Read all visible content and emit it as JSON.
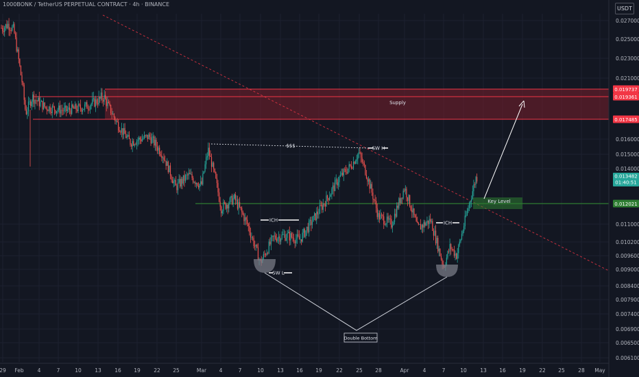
{
  "header": {
    "title": "1000BONK / TetherUS PERPETUAL CONTRACT · 4h · BINANCE",
    "currency": "USDT"
  },
  "colors": {
    "background": "#131722",
    "up": "#26a69a",
    "down": "#ef5350",
    "supply_fill": "#7a1f2b",
    "supply_border": "#f23645",
    "key_level": "#2e7d32",
    "price_tag": "#26a69a",
    "trendline": "#f23645",
    "text": "#b2b5be"
  },
  "axis": {
    "y_ticks": [
      "0.027000",
      "0.025000",
      "0.023000",
      "0.021000",
      "0.016000",
      "0.015000",
      "0.014000",
      "0.011000",
      "0.010200",
      "0.009600",
      "0.009000",
      "0.008400",
      "0.007900",
      "0.007400",
      "0.006900",
      "0.006500",
      "0.006100"
    ],
    "x_ticks": [
      "29",
      "Feb",
      "4",
      "7",
      "10",
      "13",
      "16",
      "19",
      "22",
      "25",
      "Mar",
      "4",
      "7",
      "10",
      "13",
      "16",
      "19",
      "22",
      "25",
      "28",
      "Apr",
      "4",
      "7",
      "10",
      "13",
      "16",
      "19",
      "22",
      "25",
      "28",
      "May"
    ]
  },
  "price_labels": {
    "supply_top": "0.019737",
    "supply_mid": "0.019361",
    "supply_bottom": "0.017485",
    "current_price": "0.013482",
    "countdown": "01:40:51",
    "key_level": "0.012021"
  },
  "annotations": {
    "supply": "Supply",
    "liquidity": "$$$",
    "swing_high": "SW H",
    "swing_low": "SW L",
    "ich_left": "ICH",
    "ich_right": "ICH",
    "key_level": "Key Level",
    "double_bottom": "Double Bottom"
  },
  "chart_data": {
    "type": "candlestick",
    "symbol": "1000BONK / TetherUS PERPETUAL CONTRACT",
    "interval": "4h",
    "exchange": "BINANCE",
    "ylim": [
      0.0058,
      0.0275
    ],
    "approx_close_path": [
      {
        "date": "Jan 29",
        "price": 0.0262
      },
      {
        "date": "Jan 30",
        "price": 0.0266
      },
      {
        "date": "Jan 31",
        "price": 0.026
      },
      {
        "date": "Feb 1",
        "price": 0.0225
      },
      {
        "date": "Feb 2",
        "price": 0.018
      },
      {
        "date": "Feb 3",
        "price": 0.0193
      },
      {
        "date": "Feb 5",
        "price": 0.0185
      },
      {
        "date": "Feb 8",
        "price": 0.0182
      },
      {
        "date": "Feb 11",
        "price": 0.0185
      },
      {
        "date": "Feb 13",
        "price": 0.019
      },
      {
        "date": "Feb 14",
        "price": 0.0193
      },
      {
        "date": "Feb 16",
        "price": 0.0172
      },
      {
        "date": "Feb 18",
        "price": 0.0158
      },
      {
        "date": "Feb 21",
        "price": 0.0162
      },
      {
        "date": "Feb 23",
        "price": 0.015
      },
      {
        "date": "Feb 25",
        "price": 0.0129
      },
      {
        "date": "Feb 27",
        "price": 0.0136
      },
      {
        "date": "Mar 1",
        "price": 0.013
      },
      {
        "date": "Mar 2",
        "price": 0.0153
      },
      {
        "date": "Mar 4",
        "price": 0.0118
      },
      {
        "date": "Mar 6",
        "price": 0.0123
      },
      {
        "date": "Mar 8",
        "price": 0.011
      },
      {
        "date": "Mar 10",
        "price": 0.0093
      },
      {
        "date": "Mar 12",
        "price": 0.0104
      },
      {
        "date": "Mar 14",
        "price": 0.0105
      },
      {
        "date": "Mar 16",
        "price": 0.0103
      },
      {
        "date": "Mar 18",
        "price": 0.0112
      },
      {
        "date": "Mar 20",
        "price": 0.0122
      },
      {
        "date": "Mar 22",
        "price": 0.0134
      },
      {
        "date": "Mar 24",
        "price": 0.0143
      },
      {
        "date": "Mar 25",
        "price": 0.0151
      },
      {
        "date": "Mar 26",
        "price": 0.0139
      },
      {
        "date": "Mar 28",
        "price": 0.0114
      },
      {
        "date": "Mar 30",
        "price": 0.011
      },
      {
        "date": "Apr 1",
        "price": 0.0129
      },
      {
        "date": "Apr 3",
        "price": 0.0108
      },
      {
        "date": "Apr 5",
        "price": 0.0112
      },
      {
        "date": "Apr 7",
        "price": 0.0091
      },
      {
        "date": "Apr 8",
        "price": 0.01
      },
      {
        "date": "Apr 9",
        "price": 0.0096
      },
      {
        "date": "Apr 10",
        "price": 0.0108
      },
      {
        "date": "Apr 11",
        "price": 0.0121
      },
      {
        "date": "Apr 12",
        "price": 0.013482
      }
    ],
    "levels": {
      "supply_zone": [
        0.017485,
        0.019737
      ],
      "supply_inner": 0.019361,
      "key_level": 0.012021,
      "swing_high_liquidity": 0.0153
    }
  }
}
